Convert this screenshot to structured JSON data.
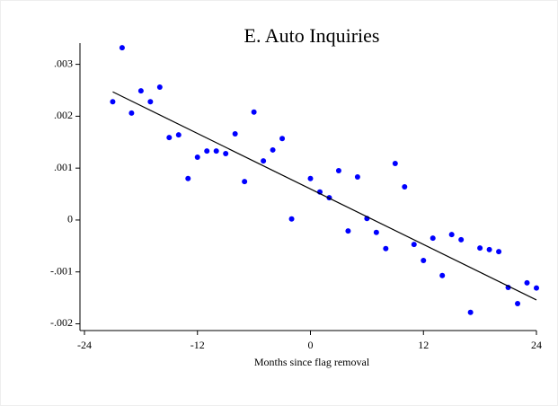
{
  "chart_data": {
    "type": "scatter",
    "title": "E. Auto Inquiries",
    "x_label": "Months since flag removal",
    "xlim": [
      -24,
      24
    ],
    "xticks": [
      -24,
      -12,
      0,
      12,
      24
    ],
    "ylim": [
      -0.00213,
      0.0034
    ],
    "yticks": [
      {
        "value": -0.002,
        "label": "-.002"
      },
      {
        "value": -0.001,
        "label": "-.001"
      },
      0,
      {
        "value": 0.001,
        "label": ".001"
      },
      {
        "value": 0.002,
        "label": ".002"
      },
      {
        "value": 0.003,
        "label": ".003"
      }
    ],
    "series": [
      {
        "color": "#0000ff",
        "x": [
          -21,
          -20,
          -19,
          -18,
          -17,
          -16,
          -15,
          -14,
          -13,
          -12,
          -11,
          -10,
          -9,
          -8,
          -7,
          -6,
          -5,
          -4,
          -3,
          -2,
          0,
          1,
          2,
          3,
          4,
          5,
          6,
          7,
          8,
          9,
          10,
          11,
          12,
          13,
          14,
          15,
          16,
          17,
          18,
          19,
          20,
          21,
          22,
          23,
          24
        ],
        "values": [
          0.00228,
          0.00332,
          0.00206,
          0.00249,
          0.00228,
          0.00256,
          0.00159,
          0.00164,
          0.0008,
          0.00121,
          0.00133,
          0.00133,
          0.00128,
          0.00166,
          0.00074,
          0.00208,
          0.00114,
          0.00135,
          0.00157,
          2e-05,
          0.0008,
          0.00054,
          0.00043,
          0.00095,
          -0.00021,
          0.00083,
          3e-05,
          -0.00024,
          -0.00055,
          0.00109,
          0.00064,
          -0.00047,
          -0.00078,
          -0.00035,
          -0.00107,
          -0.00028,
          -0.00038,
          -0.00178,
          -0.00054,
          -0.00057,
          -0.00061,
          -0.0013,
          -0.00161,
          -0.00121,
          -0.00131
        ]
      },
      {
        "type": "line",
        "color": "#000000",
        "x": [
          -21,
          24
        ],
        "values": [
          0.00247,
          -0.00154
        ]
      }
    ]
  }
}
